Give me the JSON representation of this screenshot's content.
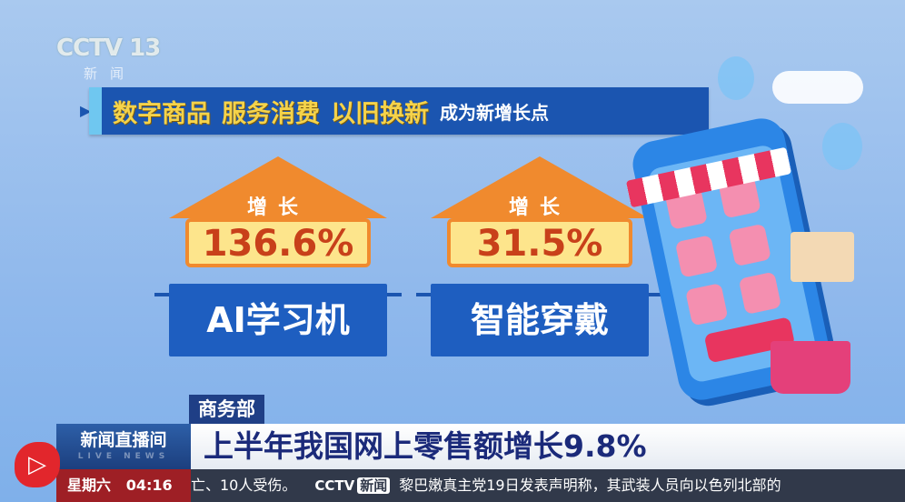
{
  "channel": {
    "logo": "CCTV 13",
    "sub": "新闻"
  },
  "headline": {
    "main": [
      "数字商品",
      "服务消费",
      "以旧换新"
    ],
    "suffix": "成为新增长点"
  },
  "stats": [
    {
      "label": "增长",
      "value": "136.6%",
      "category": "AI学习机"
    },
    {
      "label": "增长",
      "value": "31.5%",
      "category": "智能穿戴"
    }
  ],
  "lower_third": {
    "source": "商务部",
    "title": "上半年我国网上零售额增长9.8%",
    "program": "新闻直播间",
    "program_en": "LIVE NEWS",
    "day": "星期六",
    "time": "04:16"
  },
  "ticker": {
    "prev": "亡、10人受伤。",
    "logo": "CCTV",
    "logo_tag": "新闻",
    "text": "黎巴嫩真主党19日发表声明称，其武装人员向以色列北部的"
  },
  "colors": {
    "accent": "#f08a2e",
    "banner": "#1b55b0",
    "highlight": "#f5d34a",
    "live": "#e2262c"
  }
}
